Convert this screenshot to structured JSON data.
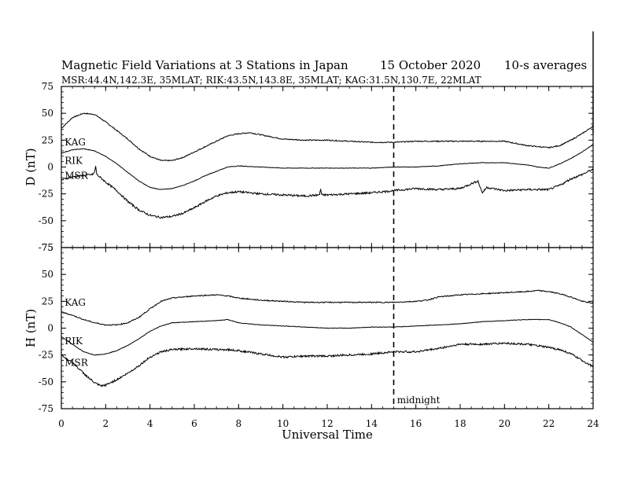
{
  "header": {
    "title": "Magnetic Field Variations at 3 Stations in Japan",
    "date": "15 October 2020",
    "averaging": "10-s averages",
    "stations_line": "MSR:44.4N,142.3E, 35MLAT;  RIK:43.5N,143.8E, 35MLAT;  KAG:31.5N,130.7E, 22MLAT"
  },
  "chart_data": [
    {
      "type": "line",
      "panel": "D",
      "ylabel": "D (nT)",
      "ylim": [
        -75,
        75
      ],
      "yticks": [
        75,
        50,
        25,
        0,
        -25,
        -50,
        -75
      ],
      "xlim": [
        0,
        24
      ],
      "xticks": [
        0,
        2,
        4,
        6,
        8,
        10,
        12,
        14,
        16,
        18,
        20,
        22,
        24
      ],
      "series": [
        {
          "name": "KAG",
          "x": [
            0,
            0.5,
            1,
            1.5,
            2,
            2.5,
            3,
            3.5,
            4,
            4.5,
            5,
            5.5,
            6,
            6.5,
            7,
            7.5,
            8,
            8.5,
            9,
            9.5,
            10,
            11,
            12,
            13,
            14,
            15,
            16,
            17,
            18,
            19,
            20,
            20.5,
            21,
            21.5,
            22,
            22.5,
            23,
            23.5,
            24
          ],
          "y": [
            36,
            46,
            50,
            49,
            42,
            34,
            26,
            17,
            10,
            6,
            6,
            9,
            14,
            19,
            24,
            29,
            31,
            32,
            30,
            28,
            26,
            25,
            25,
            24,
            23,
            23,
            24,
            24,
            24,
            24,
            24,
            22,
            20,
            19,
            18,
            20,
            25,
            31,
            38
          ]
        },
        {
          "name": "RIK",
          "x": [
            0,
            0.5,
            1,
            1.5,
            2,
            2.5,
            3,
            3.5,
            4,
            4.5,
            5,
            5.5,
            6,
            6.5,
            7,
            7.5,
            8,
            9,
            10,
            11,
            12,
            13,
            14,
            15,
            16,
            17,
            18,
            19,
            20,
            21,
            21.5,
            22,
            22.5,
            23,
            23.5,
            24
          ],
          "y": [
            13,
            16,
            17,
            15,
            10,
            3,
            -5,
            -13,
            -19,
            -21,
            -20,
            -17,
            -13,
            -8,
            -4,
            0,
            1,
            0,
            -1,
            -1,
            -1,
            -1,
            -1,
            0,
            0,
            1,
            3,
            4,
            4,
            2,
            0,
            -1,
            3,
            8,
            14,
            21
          ]
        },
        {
          "name": "MSR",
          "x": [
            0,
            0.5,
            1,
            1.4,
            1.5,
            1.55,
            1.6,
            2,
            2.5,
            3,
            3.5,
            4,
            4.5,
            5,
            5.5,
            6,
            6.5,
            7,
            7.5,
            8,
            8.5,
            9,
            10,
            11,
            11.65,
            11.7,
            11.75,
            12,
            13,
            14,
            15,
            16,
            17,
            18,
            18.8,
            19,
            19.2,
            20,
            21,
            22,
            22.5,
            23,
            23.5,
            24
          ],
          "y": [
            -12,
            -9,
            -8,
            -7,
            -5,
            1,
            -7,
            -14,
            -22,
            -32,
            -40,
            -45,
            -47,
            -46,
            -43,
            -38,
            -32,
            -27,
            -24,
            -23,
            -24,
            -25,
            -26,
            -27,
            -26,
            -20,
            -26,
            -26,
            -25,
            -24,
            -22,
            -20,
            -21,
            -20,
            -13,
            -24,
            -19,
            -22,
            -21,
            -21,
            -17,
            -11,
            -7,
            -2
          ]
        }
      ],
      "annotations": [
        {
          "text": "KAG",
          "x": 0.15,
          "y": 20
        },
        {
          "text": "RIK",
          "x": 0.15,
          "y": 3
        },
        {
          "text": "MSR",
          "x": 0.15,
          "y": -11
        }
      ],
      "reference_line_x": 15
    },
    {
      "type": "line",
      "panel": "H",
      "ylabel": "H (nT)",
      "xlabel": "Universal Time",
      "ylim": [
        -75,
        75
      ],
      "yticks": [
        75,
        50,
        25,
        0,
        -25,
        -50,
        -75
      ],
      "xlim": [
        0,
        24
      ],
      "xticks": [
        0,
        2,
        4,
        6,
        8,
        10,
        12,
        14,
        16,
        18,
        20,
        22,
        24
      ],
      "series": [
        {
          "name": "KAG",
          "x": [
            0,
            0.5,
            1,
            1.5,
            2,
            2.5,
            3,
            3.5,
            4,
            4.5,
            5,
            6,
            7,
            7.5,
            8,
            9,
            10,
            11,
            12,
            13,
            14,
            15,
            16,
            16.5,
            17,
            18,
            19,
            20,
            21,
            21.5,
            22,
            22.5,
            23,
            23.5,
            24
          ],
          "y": [
            15,
            12,
            8,
            5,
            3,
            3,
            5,
            10,
            18,
            25,
            28,
            30,
            31,
            30,
            28,
            26,
            25,
            24,
            24,
            24,
            24,
            24,
            25,
            26,
            29,
            31,
            32,
            33,
            34,
            35,
            34,
            32,
            29,
            25,
            23
          ]
        },
        {
          "name": "RIK",
          "x": [
            0,
            0.5,
            1,
            1.5,
            2,
            2.5,
            3,
            3.5,
            4,
            4.5,
            5,
            6,
            7,
            7.5,
            8,
            9,
            10,
            11,
            12,
            13,
            14,
            15,
            16,
            17,
            18,
            19,
            20,
            21,
            22,
            22.5,
            23,
            23.5,
            24
          ],
          "y": [
            -8,
            -15,
            -22,
            -25,
            -24,
            -21,
            -16,
            -10,
            -3,
            2,
            5,
            6,
            7,
            8,
            5,
            3,
            2,
            1,
            0,
            0,
            1,
            1,
            2,
            3,
            4,
            6,
            7,
            8,
            8,
            5,
            1,
            -6,
            -13
          ]
        },
        {
          "name": "MSR",
          "x": [
            0,
            0.5,
            1,
            1.5,
            1.8,
            2,
            2.5,
            3,
            3.5,
            4,
            4.5,
            5,
            6,
            7,
            7.5,
            8,
            9,
            10,
            11,
            12,
            13,
            14,
            15,
            16,
            17,
            18,
            19,
            20,
            21,
            22,
            22.5,
            23,
            23.5,
            24
          ],
          "y": [
            -25,
            -32,
            -42,
            -51,
            -54,
            -53,
            -48,
            -42,
            -35,
            -27,
            -22,
            -20,
            -19,
            -20,
            -20,
            -21,
            -24,
            -27,
            -26,
            -26,
            -25,
            -24,
            -22,
            -22,
            -19,
            -15,
            -15,
            -14,
            -15,
            -18,
            -20,
            -24,
            -30,
            -36
          ]
        }
      ],
      "annotations": [
        {
          "text": "KAG",
          "x": 0.15,
          "y": 21
        },
        {
          "text": "RIK",
          "x": 0.15,
          "y": -15
        },
        {
          "text": "MSR",
          "x": 0.15,
          "y": -35
        },
        {
          "text": "midnight",
          "x": 15.15,
          "y": -70
        }
      ],
      "reference_line_x": 15
    }
  ]
}
